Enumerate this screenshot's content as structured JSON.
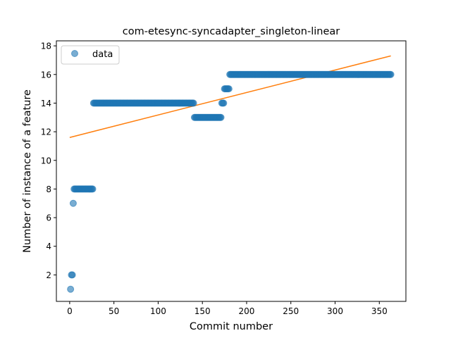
{
  "chart_data": {
    "type": "scatter",
    "title": "com-etesync-syncadapter_singleton-linear",
    "xlabel": "Commit number",
    "ylabel": "Number of instance of a feature",
    "xlim": [
      -15.05,
      380.05
    ],
    "ylim": [
      0.15,
      18.35
    ],
    "xticks": [
      0,
      50,
      100,
      150,
      200,
      250,
      300,
      350
    ],
    "yticks": [
      2,
      4,
      6,
      8,
      10,
      12,
      14,
      16,
      18
    ],
    "grid": false,
    "legend": {
      "position": "top-left",
      "entries": [
        "data"
      ]
    },
    "colors": {
      "data": "#1f77b4",
      "fit": "#ff7f0e"
    },
    "series": [
      {
        "name": "data",
        "kind": "scatter",
        "segments": [
          {
            "x_start": 1,
            "x_end": 1,
            "y": 1
          },
          {
            "x_start": 2,
            "x_end": 3,
            "y": 2
          },
          {
            "x_start": 4,
            "x_end": 4,
            "y": 7
          },
          {
            "x_start": 5,
            "x_end": 26,
            "y": 8
          },
          {
            "x_start": 27,
            "x_end": 140,
            "y": 14
          },
          {
            "x_start": 141,
            "x_end": 171,
            "y": 13
          },
          {
            "x_start": 172,
            "x_end": 174,
            "y": 14
          },
          {
            "x_start": 175,
            "x_end": 180,
            "y": 15
          },
          {
            "x_start": 181,
            "x_end": 363,
            "y": 16
          }
        ]
      },
      {
        "kind": "line",
        "x": [
          0,
          363
        ],
        "y": [
          11.6,
          17.3
        ]
      }
    ]
  }
}
